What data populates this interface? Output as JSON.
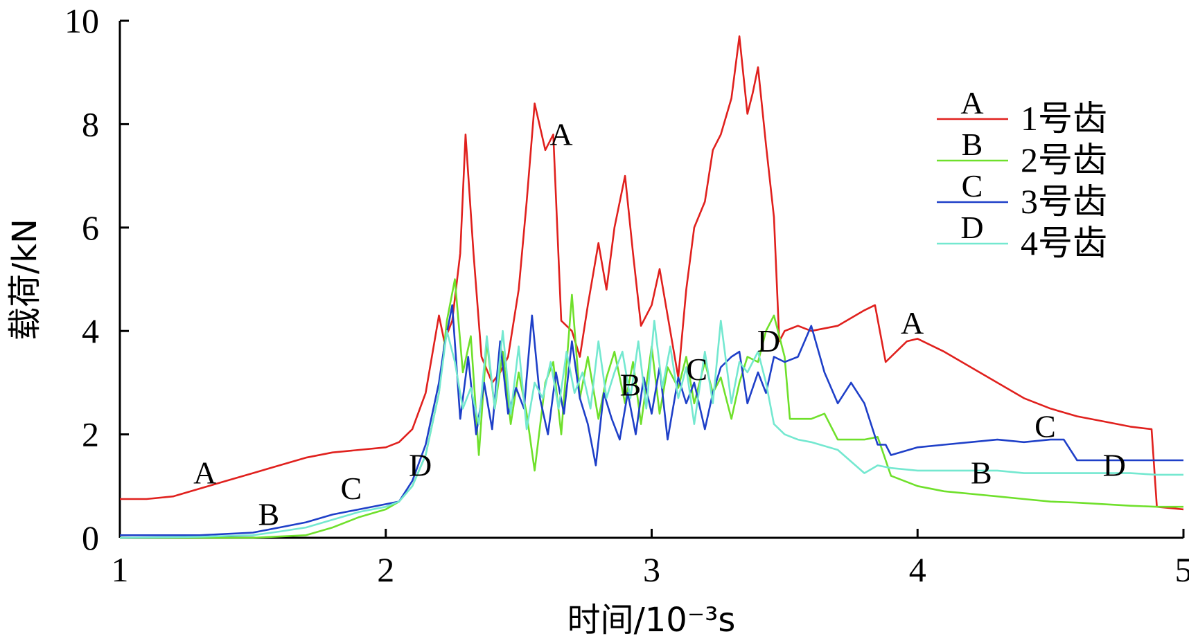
{
  "chart_data": {
    "type": "line",
    "title": "",
    "xlabel": "时间/10⁻³s",
    "ylabel": "载荷/kN",
    "xlim": [
      1,
      5
    ],
    "ylim": [
      0,
      10
    ],
    "xticks": [
      "1",
      "2",
      "3",
      "4",
      "5"
    ],
    "yticks": [
      "0",
      "2",
      "4",
      "6",
      "8",
      "10"
    ],
    "grid": false,
    "legend_position": "top-right",
    "series": [
      {
        "name": "1号齿",
        "letter": "A",
        "color": "#e0201d",
        "x": [
          1.0,
          1.1,
          1.2,
          1.3,
          1.4,
          1.5,
          1.6,
          1.7,
          1.8,
          1.9,
          2.0,
          2.05,
          2.1,
          2.15,
          2.2,
          2.22,
          2.25,
          2.28,
          2.3,
          2.33,
          2.36,
          2.4,
          2.43,
          2.46,
          2.5,
          2.53,
          2.56,
          2.6,
          2.63,
          2.66,
          2.7,
          2.73,
          2.76,
          2.8,
          2.83,
          2.86,
          2.9,
          2.93,
          2.96,
          3.0,
          3.03,
          3.06,
          3.1,
          3.13,
          3.16,
          3.2,
          3.23,
          3.26,
          3.3,
          3.33,
          3.36,
          3.38,
          3.4,
          3.43,
          3.46,
          3.48,
          3.5,
          3.55,
          3.6,
          3.7,
          3.8,
          3.84,
          3.88,
          3.92,
          3.96,
          4.0,
          4.1,
          4.2,
          4.3,
          4.4,
          4.5,
          4.6,
          4.7,
          4.8,
          4.88,
          4.9,
          5.0
        ],
        "y": [
          0.75,
          0.75,
          0.8,
          0.95,
          1.1,
          1.25,
          1.4,
          1.55,
          1.65,
          1.7,
          1.75,
          1.85,
          2.1,
          2.8,
          4.3,
          3.8,
          4.2,
          5.5,
          7.8,
          5.5,
          3.5,
          3.0,
          3.2,
          3.5,
          4.8,
          6.5,
          8.4,
          7.5,
          7.8,
          4.2,
          4.0,
          3.5,
          4.5,
          5.7,
          4.8,
          6.0,
          7.0,
          5.5,
          4.1,
          4.5,
          5.2,
          4.3,
          3.1,
          4.8,
          6.0,
          6.5,
          7.5,
          7.8,
          8.5,
          9.7,
          8.2,
          8.6,
          9.1,
          7.6,
          6.2,
          3.8,
          4.0,
          4.1,
          4.0,
          4.1,
          4.4,
          4.5,
          3.4,
          3.6,
          3.8,
          3.85,
          3.6,
          3.3,
          3.0,
          2.7,
          2.5,
          2.35,
          2.25,
          2.15,
          2.1,
          0.6,
          0.55
        ]
      },
      {
        "name": "2号齿",
        "letter": "B",
        "color": "#6fe02b",
        "x": [
          1.0,
          1.5,
          1.7,
          1.8,
          1.9,
          2.0,
          2.05,
          2.1,
          2.15,
          2.2,
          2.23,
          2.26,
          2.29,
          2.32,
          2.35,
          2.38,
          2.41,
          2.44,
          2.47,
          2.5,
          2.53,
          2.56,
          2.6,
          2.63,
          2.66,
          2.7,
          2.73,
          2.76,
          2.8,
          2.83,
          2.86,
          2.9,
          2.93,
          2.96,
          3.0,
          3.03,
          3.06,
          3.1,
          3.13,
          3.16,
          3.2,
          3.23,
          3.26,
          3.3,
          3.33,
          3.36,
          3.4,
          3.43,
          3.46,
          3.5,
          3.52,
          3.55,
          3.6,
          3.65,
          3.7,
          3.8,
          3.85,
          3.9,
          4.0,
          4.1,
          4.2,
          4.3,
          4.4,
          4.5,
          4.6,
          4.7,
          4.8,
          4.9,
          5.0
        ],
        "y": [
          0.0,
          0.0,
          0.05,
          0.2,
          0.4,
          0.55,
          0.7,
          1.0,
          1.6,
          2.8,
          4.2,
          5.0,
          3.2,
          3.9,
          1.6,
          3.8,
          2.5,
          3.6,
          2.2,
          3.2,
          2.4,
          1.3,
          3.0,
          3.4,
          2.0,
          4.7,
          2.7,
          3.5,
          2.3,
          3.1,
          3.6,
          2.6,
          3.4,
          2.2,
          3.7,
          2.4,
          3.3,
          2.9,
          3.5,
          2.6,
          3.4,
          2.8,
          3.1,
          2.3,
          3.0,
          3.5,
          3.4,
          4.0,
          4.3,
          3.5,
          2.3,
          2.3,
          2.3,
          2.4,
          1.9,
          1.9,
          1.95,
          1.2,
          1.0,
          0.9,
          0.85,
          0.8,
          0.75,
          0.7,
          0.68,
          0.65,
          0.62,
          0.6,
          0.6
        ]
      },
      {
        "name": "3号齿",
        "letter": "C",
        "color": "#1e3fc8",
        "x": [
          1.0,
          1.3,
          1.5,
          1.6,
          1.7,
          1.8,
          1.9,
          2.0,
          2.05,
          2.1,
          2.15,
          2.2,
          2.22,
          2.25,
          2.28,
          2.31,
          2.34,
          2.37,
          2.4,
          2.43,
          2.46,
          2.49,
          2.52,
          2.55,
          2.58,
          2.61,
          2.64,
          2.67,
          2.7,
          2.73,
          2.76,
          2.79,
          2.82,
          2.85,
          2.88,
          2.91,
          2.94,
          2.97,
          3.0,
          3.03,
          3.06,
          3.1,
          3.13,
          3.16,
          3.2,
          3.23,
          3.26,
          3.3,
          3.33,
          3.36,
          3.4,
          3.43,
          3.46,
          3.5,
          3.55,
          3.6,
          3.65,
          3.7,
          3.75,
          3.8,
          3.85,
          3.88,
          3.9,
          4.0,
          4.1,
          4.2,
          4.3,
          4.4,
          4.5,
          4.55,
          4.6,
          4.7,
          4.8,
          4.9,
          5.0
        ],
        "y": [
          0.05,
          0.05,
          0.1,
          0.2,
          0.3,
          0.45,
          0.55,
          0.65,
          0.7,
          1.1,
          1.8,
          3.0,
          3.7,
          4.5,
          2.3,
          3.5,
          2.0,
          3.0,
          2.1,
          3.8,
          2.4,
          2.9,
          2.5,
          4.3,
          2.7,
          2.0,
          3.2,
          2.4,
          3.8,
          2.7,
          2.2,
          1.4,
          2.8,
          2.3,
          1.9,
          2.8,
          2.0,
          3.1,
          2.4,
          3.3,
          1.9,
          3.1,
          2.6,
          3.0,
          2.1,
          2.8,
          3.3,
          3.5,
          3.6,
          2.6,
          3.2,
          2.8,
          3.5,
          3.4,
          3.5,
          4.1,
          3.2,
          2.6,
          3.0,
          2.6,
          1.8,
          1.8,
          1.6,
          1.75,
          1.8,
          1.85,
          1.9,
          1.85,
          1.9,
          1.9,
          1.5,
          1.5,
          1.5,
          1.5,
          1.5
        ]
      },
      {
        "name": "4号齿",
        "letter": "D",
        "color": "#74e8d0",
        "x": [
          1.0,
          1.3,
          1.5,
          1.6,
          1.7,
          1.8,
          1.9,
          2.0,
          2.05,
          2.1,
          2.15,
          2.2,
          2.23,
          2.26,
          2.29,
          2.32,
          2.35,
          2.38,
          2.41,
          2.44,
          2.47,
          2.5,
          2.53,
          2.56,
          2.59,
          2.62,
          2.65,
          2.68,
          2.71,
          2.74,
          2.77,
          2.8,
          2.83,
          2.86,
          2.89,
          2.92,
          2.95,
          2.98,
          3.01,
          3.04,
          3.07,
          3.1,
          3.13,
          3.16,
          3.2,
          3.23,
          3.26,
          3.3,
          3.33,
          3.36,
          3.4,
          3.43,
          3.46,
          3.5,
          3.55,
          3.6,
          3.7,
          3.8,
          3.85,
          3.9,
          4.0,
          4.1,
          4.2,
          4.3,
          4.4,
          4.5,
          4.6,
          4.7,
          4.8,
          4.9,
          5.0
        ],
        "y": [
          0.0,
          0.02,
          0.05,
          0.12,
          0.2,
          0.35,
          0.5,
          0.6,
          0.7,
          1.0,
          1.6,
          2.8,
          4.0,
          3.4,
          2.5,
          2.9,
          2.2,
          3.9,
          2.5,
          4.0,
          2.4,
          3.7,
          2.1,
          3.0,
          2.7,
          3.4,
          2.5,
          3.6,
          2.8,
          3.2,
          2.5,
          3.8,
          2.7,
          3.2,
          3.6,
          2.7,
          3.8,
          2.5,
          4.2,
          2.9,
          3.7,
          2.7,
          3.3,
          2.2,
          3.6,
          2.6,
          4.2,
          2.6,
          3.4,
          3.2,
          3.6,
          3.0,
          2.2,
          2.0,
          1.9,
          1.85,
          1.7,
          1.25,
          1.4,
          1.35,
          1.3,
          1.3,
          1.3,
          1.3,
          1.25,
          1.25,
          1.25,
          1.25,
          1.25,
          1.22,
          1.22
        ]
      }
    ],
    "curve_labels": [
      {
        "text": "A",
        "x": 1.32,
        "y": 1.05
      },
      {
        "text": "A",
        "x": 2.66,
        "y": 7.6
      },
      {
        "text": "A",
        "x": 3.98,
        "y": 3.95
      },
      {
        "text": "B",
        "x": 1.56,
        "y": 0.25
      },
      {
        "text": "B",
        "x": 2.92,
        "y": 2.75
      },
      {
        "text": "B",
        "x": 4.24,
        "y": 1.05
      },
      {
        "text": "C",
        "x": 1.87,
        "y": 0.75
      },
      {
        "text": "C",
        "x": 3.17,
        "y": 3.05
      },
      {
        "text": "C",
        "x": 4.48,
        "y": 1.95
      },
      {
        "text": "D",
        "x": 2.13,
        "y": 1.2
      },
      {
        "text": "D",
        "x": 3.44,
        "y": 3.6
      },
      {
        "text": "D",
        "x": 4.74,
        "y": 1.2
      }
    ]
  }
}
